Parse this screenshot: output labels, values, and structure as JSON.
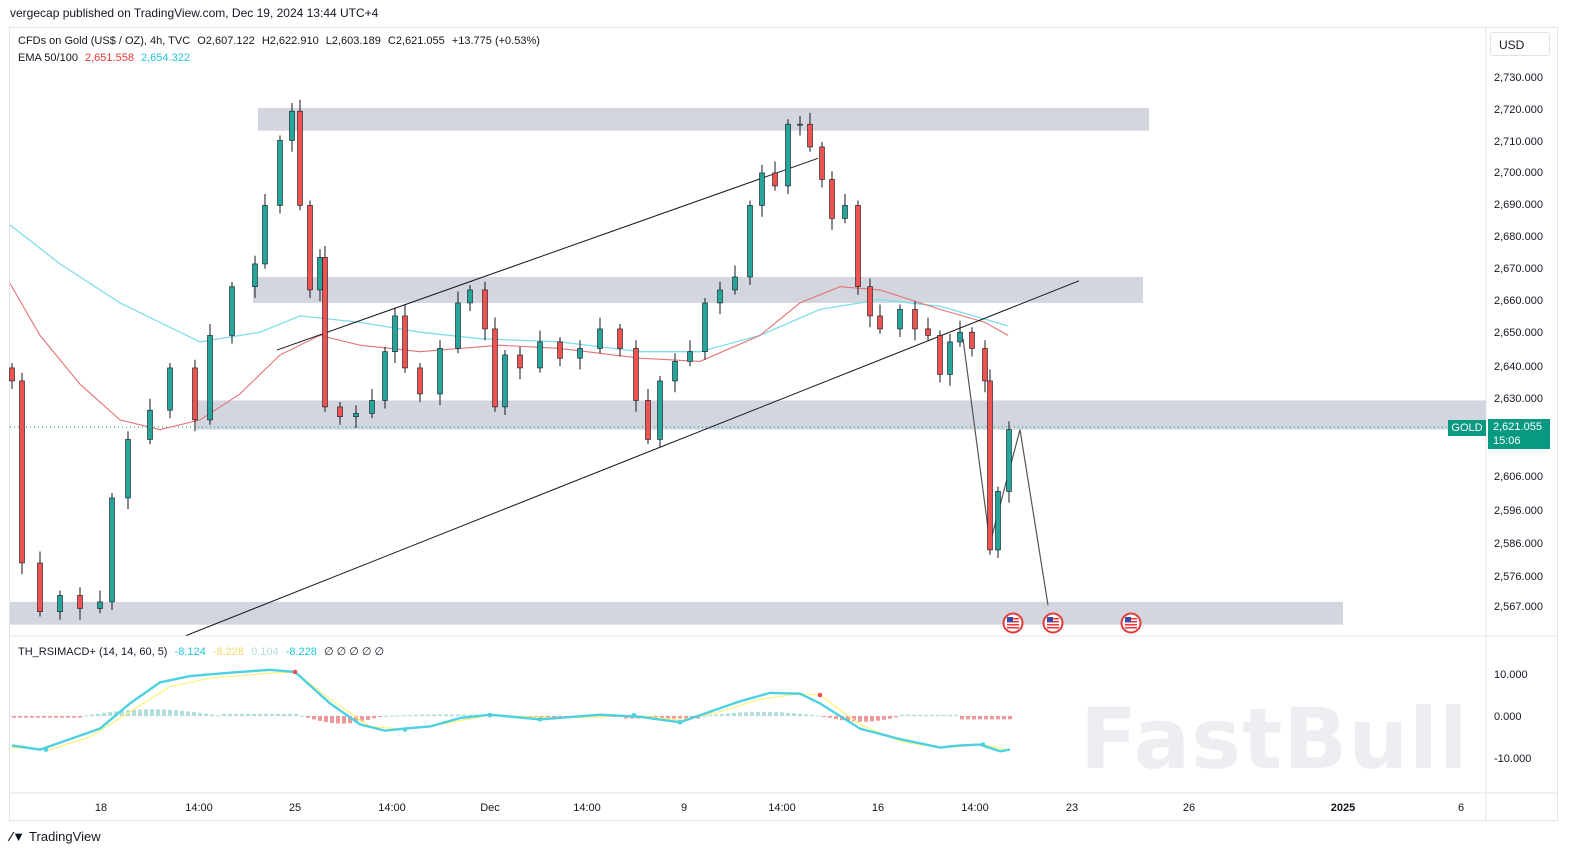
{
  "publisher": "vergecap published on TradingView.com, Dec 19, 2024 13:44 UTC+4",
  "legend": {
    "symbol": "CFDs on Gold (US$ / OZ), 4h, TVC",
    "open": "O2,607.122",
    "high": "H2,622.910",
    "low": "L2,603.189",
    "close": "C2,621.055",
    "change": "+13.775 (+0.53%)",
    "ema_label": "EMA 50/100",
    "ema50": "2,651.558",
    "ema100": "2,654.322",
    "indicator_label": "TH_RSIMACD+ (14, 14, 60, 5)",
    "ind_v1": "-8.124",
    "ind_v2": "-8.228",
    "ind_v3": "0.104",
    "ind_v4": "-8.228",
    "ind_zeros": "∅ ∅ ∅ ∅ ∅"
  },
  "currency": "USD",
  "price_tag": {
    "symbol": "GOLD",
    "price": "2,621.055",
    "countdown": "15:06"
  },
  "footer_logo": "TradingView",
  "watermark": "FastBull",
  "colors": {
    "up": "#26a69a",
    "down": "#ef5350",
    "ema50": "#e57373",
    "ema100": "#80deea",
    "zone": "#d1d4dc",
    "tag": "#089981",
    "rsi_line": "#4dd0e1",
    "signal_line": "#fff176"
  },
  "icons": [
    "flag-us-event-icon",
    "flag-us-event-icon",
    "flag-us-event-icon"
  ],
  "chart_data": {
    "type": "candlestick",
    "timeframe": "4h",
    "y_axis_ticks": [
      2730,
      2720,
      2710,
      2700,
      2690,
      2680,
      2670,
      2660,
      2650,
      2640,
      2630,
      2621.055,
      2606,
      2596,
      2586,
      2576,
      2567
    ],
    "y_tick_labels": [
      "2,730.000",
      "2,720.000",
      "2,710.000",
      "2,700.000",
      "2,690.000",
      "2,680.000",
      "2,670.000",
      "2,660.000",
      "2,650.000",
      "2,640.000",
      "2,630.000",
      "2,606.000",
      "2,596.000",
      "2,586.000",
      "2,576.000",
      "2,567.000"
    ],
    "x_tick_labels": [
      "18",
      "14:00",
      "25",
      "14:00",
      "Dec",
      "14:00",
      "9",
      "14:00",
      "16",
      "14:00",
      "23",
      "26",
      "2025",
      "6"
    ],
    "zones": [
      {
        "from": 2713,
        "to": 2720
      },
      {
        "from": 2660,
        "to": 2668
      },
      {
        "from": 2621,
        "to": 2630
      },
      {
        "from": 2561,
        "to": 2568
      }
    ],
    "indicator": {
      "name": "TH_RSIMACD+",
      "y_tick_labels": [
        "10.000",
        "0.000",
        "-10.000"
      ],
      "ylim": [
        -15,
        15
      ]
    },
    "ema50_last": 2651.558,
    "ema100_last": 2654.322,
    "last_close": 2621.055
  }
}
